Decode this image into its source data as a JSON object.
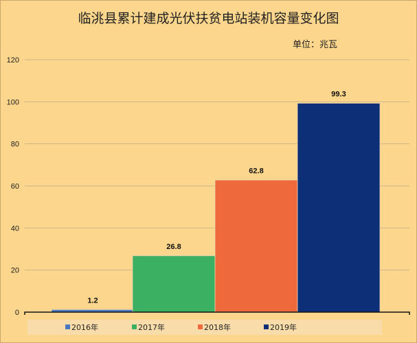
{
  "chart_data": {
    "type": "bar",
    "title": "临洮县累计建成光伏扶贫电站装机容量变化图",
    "unit_label": "单位：兆瓦",
    "categories": [
      "2016年",
      "2017年",
      "2018年",
      "2019年"
    ],
    "values": [
      1.2,
      26.8,
      62.8,
      99.3
    ],
    "data_labels": [
      "1.2",
      "26.8",
      "62.8",
      "99.3"
    ],
    "colors": [
      "#4a78c0",
      "#3cb062",
      "#ee6a3c",
      "#0c2f78"
    ],
    "ylim": [
      0,
      120
    ],
    "yticks": [
      0,
      20,
      40,
      60,
      80,
      100,
      120
    ],
    "grid": true,
    "legend": "bottom",
    "xlabel": "",
    "ylabel": ""
  }
}
